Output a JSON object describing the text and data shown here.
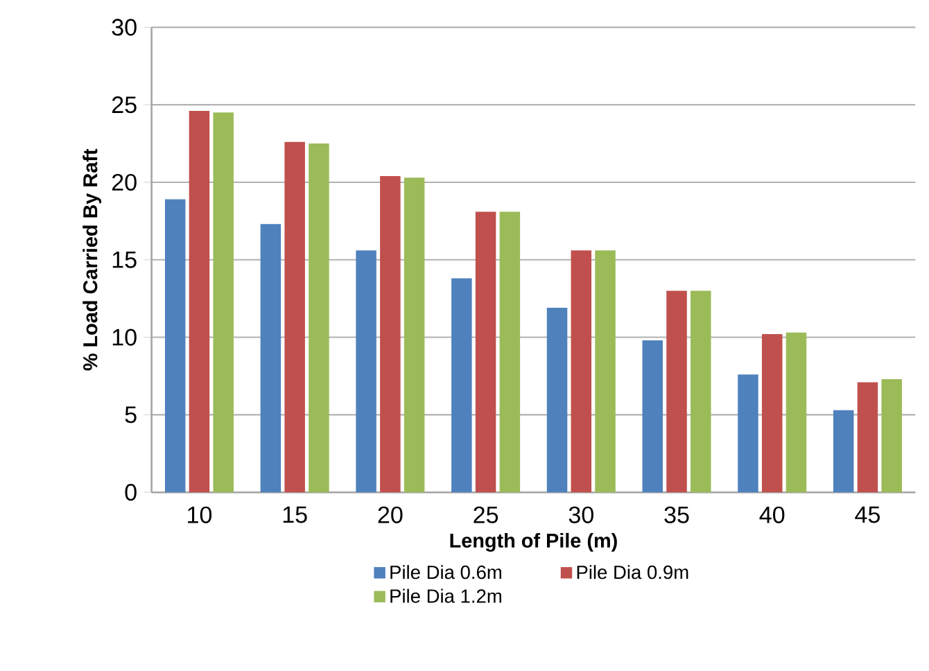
{
  "chart_data": {
    "type": "bar",
    "xlabel": "Length of Pile  (m)",
    "ylabel": "% Load Carried By Raft",
    "categories": [
      "10",
      "15",
      "20",
      "25",
      "30",
      "35",
      "40",
      "45"
    ],
    "series": [
      {
        "name": "Pile Dia 0.6m",
        "color": "#4f81bd",
        "values": [
          18.9,
          17.3,
          15.6,
          13.8,
          11.9,
          9.8,
          7.6,
          5.3
        ]
      },
      {
        "name": "Pile Dia 0.9m",
        "color": "#c0504d",
        "values": [
          24.6,
          22.6,
          20.4,
          18.1,
          15.6,
          13.0,
          10.2,
          7.1
        ]
      },
      {
        "name": "Pile Dia 1.2m",
        "color": "#9bbb59",
        "values": [
          24.5,
          22.5,
          20.3,
          18.1,
          15.6,
          13.0,
          10.3,
          7.3
        ]
      }
    ],
    "ylim": [
      0,
      30
    ],
    "yticks": [
      0,
      5,
      10,
      15,
      20,
      25,
      30
    ],
    "grid": "y",
    "legend": "bottom"
  }
}
